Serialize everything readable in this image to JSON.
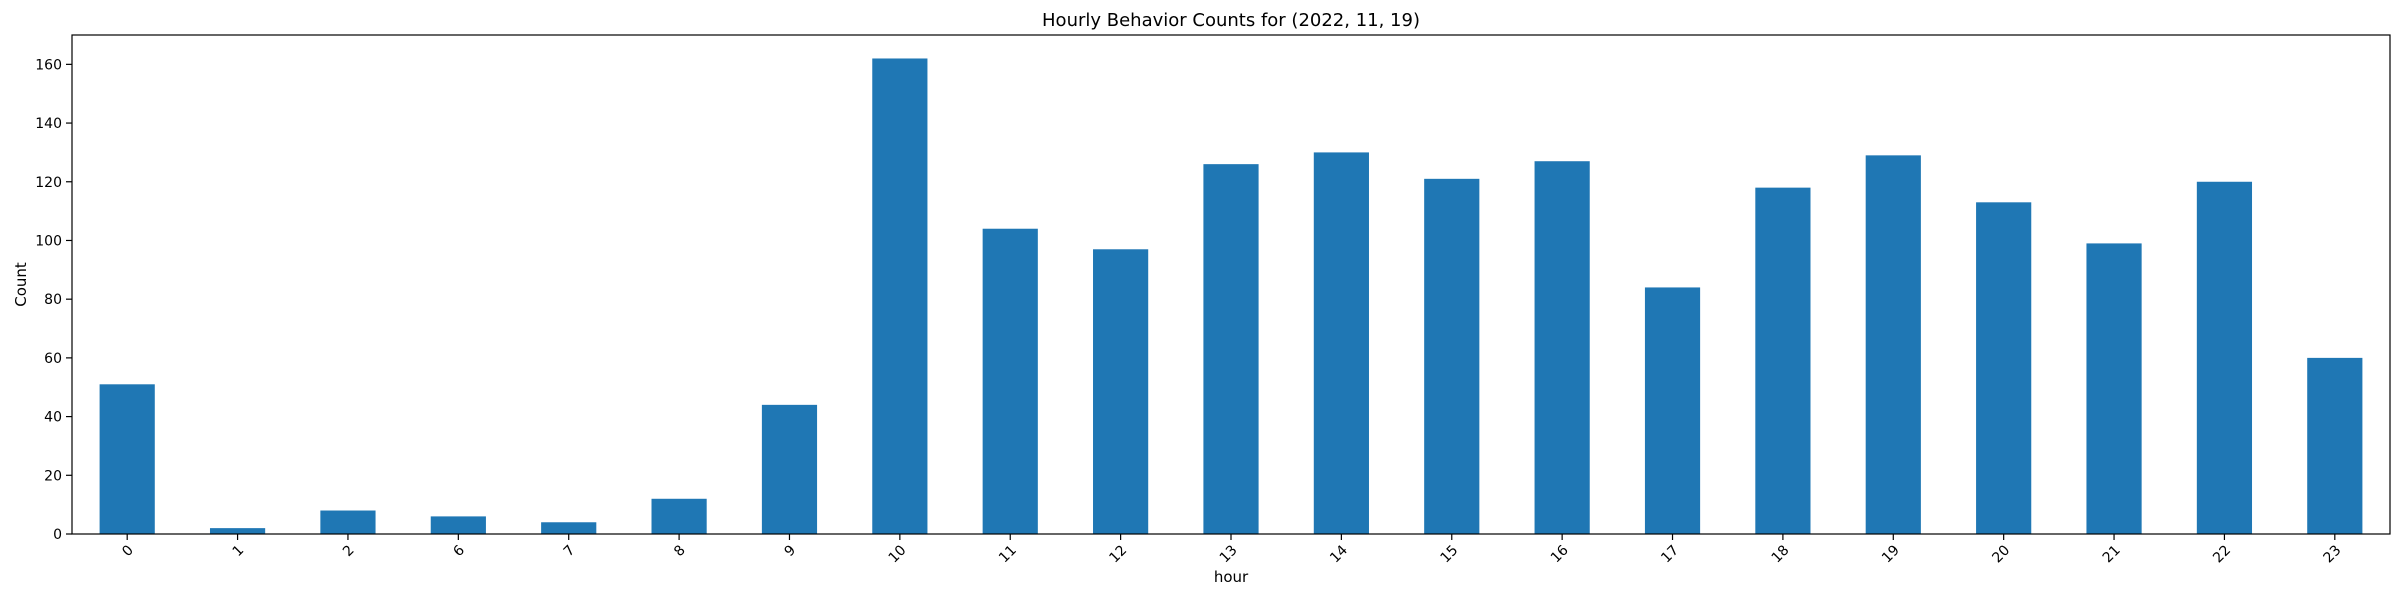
{
  "chart_data": {
    "type": "bar",
    "title": "Hourly Behavior Counts for (2022, 11, 19)",
    "xlabel": "hour",
    "ylabel": "Count",
    "categories": [
      "0",
      "1",
      "2",
      "6",
      "7",
      "8",
      "9",
      "10",
      "11",
      "12",
      "13",
      "14",
      "15",
      "16",
      "17",
      "18",
      "19",
      "20",
      "21",
      "22",
      "23"
    ],
    "values": [
      51,
      2,
      8,
      6,
      4,
      12,
      44,
      162,
      104,
      97,
      126,
      130,
      121,
      127,
      84,
      118,
      129,
      113,
      99,
      120,
      60
    ],
    "ylim": [
      0,
      170
    ],
    "yticks": [
      0,
      20,
      40,
      60,
      80,
      100,
      120,
      140,
      160
    ],
    "grid": false,
    "legend": false,
    "bar_color": "#1f77b4",
    "axis_color": "#000000"
  }
}
